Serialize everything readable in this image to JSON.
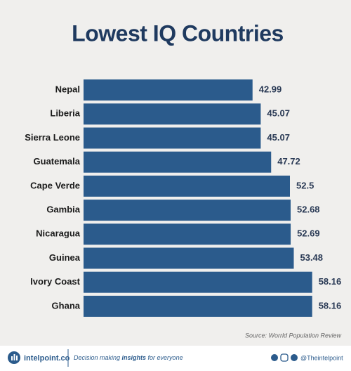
{
  "chart_data": {
    "type": "hbar",
    "title": "Lowest IQ Countries",
    "categories": [
      "Nepal",
      "Liberia",
      "Sierra Leone",
      "Guatemala",
      "Cape Verde",
      "Gambia",
      "Nicaragua",
      "Guinea",
      "Ivory Coast",
      "Ghana"
    ],
    "values": [
      42.99,
      45.07,
      45.07,
      47.72,
      52.5,
      52.68,
      52.69,
      53.48,
      58.16,
      58.16
    ],
    "color": "#2b5b8c",
    "xlim": [
      0,
      60
    ],
    "source": "Source: Worrld Population Review"
  },
  "footer": {
    "brand": "intelpoint.co",
    "tagline": [
      "Decision making ",
      "insights",
      " for everyone"
    ],
    "handle": "@Theintelpoint"
  }
}
